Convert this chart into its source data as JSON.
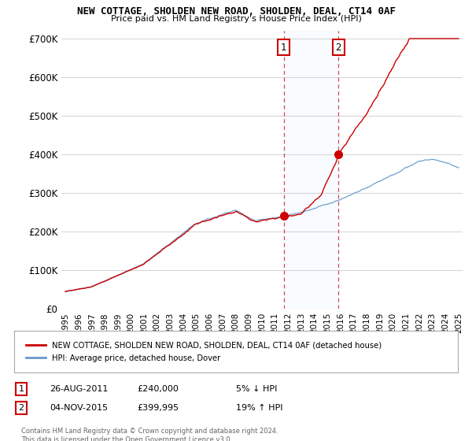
{
  "title": "NEW COTTAGE, SHOLDEN NEW ROAD, SHOLDEN, DEAL, CT14 0AF",
  "subtitle": "Price paid vs. HM Land Registry's House Price Index (HPI)",
  "ylim": [
    0,
    720000
  ],
  "yticks": [
    0,
    100000,
    200000,
    300000,
    400000,
    500000,
    600000,
    700000
  ],
  "ytick_labels": [
    "£0",
    "£100K",
    "£200K",
    "£300K",
    "£400K",
    "£500K",
    "£600K",
    "£700K"
  ],
  "line_color_house": "#cc0000",
  "line_color_hpi": "#6699cc",
  "vline_color": "#cc0000",
  "shade_color": "#ddeeff",
  "legend_house": "NEW COTTAGE, SHOLDEN NEW ROAD, SHOLDEN, DEAL, CT14 0AF (detached house)",
  "legend_hpi": "HPI: Average price, detached house, Dover",
  "transaction_1_date": "26-AUG-2011",
  "transaction_1_price": "£240,000",
  "transaction_1_hpi": "5% ↓ HPI",
  "transaction_1_year": 2011.65,
  "transaction_1_value": 240000,
  "transaction_2_date": "04-NOV-2015",
  "transaction_2_price": "£399,995",
  "transaction_2_hpi": "19% ↑ HPI",
  "transaction_2_year": 2015.84,
  "transaction_2_value": 399995,
  "footer": "Contains HM Land Registry data © Crown copyright and database right 2024.\nThis data is licensed under the Open Government Licence v3.0.",
  "background_color": "#ffffff"
}
